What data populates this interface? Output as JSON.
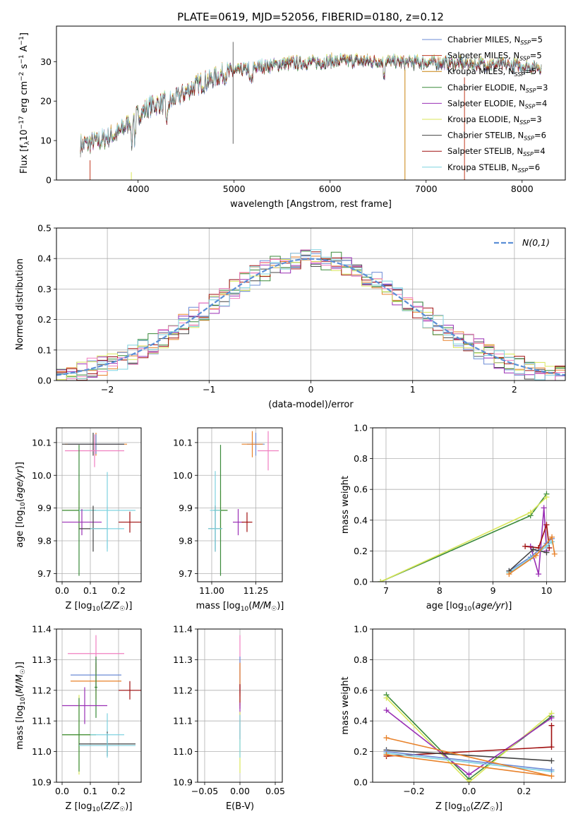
{
  "title": "PLATE=0619, MJD=52056, FIBERID=0180, z=0.12",
  "chart_data": [
    {
      "id": "spectrum",
      "type": "line",
      "xlabel": "wavelength [Angstrom, rest frame]",
      "ylabel": "Flux [f_λ 10^-17 erg cm^-2 s^-1 A^-1]",
      "xlim": [
        3150,
        8450
      ],
      "ylim": [
        0,
        39
      ],
      "xticks": [
        4000,
        5000,
        6000,
        7000,
        8000
      ],
      "yticks": [
        0,
        10,
        20,
        30
      ],
      "legend_position": "top-right",
      "grid": false,
      "continuum_points": [
        [
          3400,
          9
        ],
        [
          3600,
          10
        ],
        [
          3800,
          12
        ],
        [
          3950,
          16
        ],
        [
          4150,
          19
        ],
        [
          4350,
          20
        ],
        [
          4600,
          24
        ],
        [
          4900,
          27
        ],
        [
          5200,
          28.5
        ],
        [
          5500,
          29.5
        ],
        [
          5800,
          29.8
        ],
        [
          6200,
          30.3
        ],
        [
          6600,
          30
        ],
        [
          7000,
          29.8
        ],
        [
          7400,
          29.6
        ],
        [
          7800,
          29.2
        ],
        [
          8200,
          28.6
        ]
      ],
      "series": [
        {
          "name": "Chabrier MILES, N_SSP=5",
          "color": "#6b8bd6"
        },
        {
          "name": "Salpeter MILES, N_SSP=5",
          "color": "#c23b22"
        },
        {
          "name": "Kroupa MILES, N_SSP=5",
          "color": "#c8820f"
        },
        {
          "name": "Chabrier ELODIE, N_SSP=3",
          "color": "#3a8a3a"
        },
        {
          "name": "Salpeter ELODIE, N_SSP=4",
          "color": "#9a2fb5"
        },
        {
          "name": "Kroupa ELODIE, N_SSP=3",
          "color": "#d8e65a"
        },
        {
          "name": "Chabrier STELIB, N_SSP=6",
          "color": "#444444"
        },
        {
          "name": "Salpeter STELIB, N_SSP=4",
          "color": "#a01010"
        },
        {
          "name": "Kroupa STELIB, N_SSP=6",
          "color": "#7fd3e0"
        }
      ]
    },
    {
      "id": "residual_hist",
      "type": "line",
      "xlabel": "(data-model)/error",
      "ylabel": "Normed distribution",
      "xlim": [
        -2.5,
        2.5
      ],
      "ylim": [
        0,
        0.5
      ],
      "xticks": [
        -2,
        -1,
        0,
        1,
        2
      ],
      "yticks": [
        0.0,
        0.1,
        0.2,
        0.3,
        0.4,
        0.5
      ],
      "grid": true,
      "legend_position": "top-right",
      "reference": {
        "name": "N(0,1)",
        "color": "#5b8fd6"
      },
      "bin_width": 0.1,
      "series_colors": [
        "#444444",
        "#e8822a",
        "#6b8bd6",
        "#3a8a3a",
        "#9a2fb5",
        "#d8e65a",
        "#a01010",
        "#f07fc0",
        "#7fd3e0"
      ]
    },
    {
      "id": "age_vs_Z",
      "type": "scatter",
      "xlabel": "Z [log10(Z/Z☉)]",
      "ylabel": "age  [log10(age/yr)]",
      "xlim": [
        -0.02,
        0.28
      ],
      "ylim": [
        9.675,
        10.145
      ],
      "xticks": [
        0.0,
        0.1,
        0.2
      ],
      "yticks": [
        9.7,
        9.8,
        9.9,
        10.0,
        10.1
      ],
      "grid": true,
      "points": [
        {
          "x": 0.12,
          "y": 10.095,
          "xerr": 0.11,
          "yerr": 0.035,
          "color": "#e8822a"
        },
        {
          "x": 0.12,
          "y": 10.095,
          "xerr": 0.1,
          "yerr": 0.03,
          "color": "#6b8bd6"
        },
        {
          "x": 0.11,
          "y": 10.095,
          "xerr": 0.11,
          "yerr": 0.035,
          "color": "#444444"
        },
        {
          "x": 0.115,
          "y": 10.075,
          "xerr": 0.105,
          "yerr": 0.05,
          "color": "#f07fc0"
        },
        {
          "x": 0.06,
          "y": 9.893,
          "xerr": 0.06,
          "yerr": 0.06,
          "color": "#d8e65a"
        },
        {
          "x": 0.06,
          "y": 9.893,
          "xerr": 0.06,
          "yerr": 0.2,
          "color": "#3a8a3a"
        },
        {
          "x": 0.16,
          "y": 9.893,
          "xerr": 0.1,
          "yerr": 0.117,
          "color": "#7fd3e0"
        },
        {
          "x": 0.07,
          "y": 9.857,
          "xerr": 0.07,
          "yerr": 0.04,
          "color": "#9a2fb5"
        },
        {
          "x": 0.24,
          "y": 9.857,
          "xerr": 0.04,
          "yerr": 0.032,
          "color": "#a01010"
        },
        {
          "x": 0.11,
          "y": 9.837,
          "xerr": 0.05,
          "yerr": 0.07,
          "color": "#444444"
        },
        {
          "x": 0.16,
          "y": 9.837,
          "xerr": 0.06,
          "yerr": 0.07,
          "color": "#7fd3e0"
        }
      ]
    },
    {
      "id": "age_vs_mass",
      "type": "scatter",
      "xlabel": "mass [log10(M/M☉)]",
      "ylabel": "",
      "xlim": [
        10.92,
        11.4
      ],
      "ylim": [
        9.675,
        10.145
      ],
      "xticks": [
        11.0,
        11.25
      ],
      "yticks": [
        9.7,
        9.8,
        9.9,
        10.0,
        10.1
      ],
      "grid": true,
      "points": [
        {
          "x": 11.25,
          "y": 10.095,
          "xerr": 0.05,
          "yerr": 0.035,
          "color": "#6b8bd6"
        },
        {
          "x": 11.23,
          "y": 10.095,
          "xerr": 0.06,
          "yerr": 0.04,
          "color": "#e8822a"
        },
        {
          "x": 11.32,
          "y": 10.075,
          "xerr": 0.06,
          "yerr": 0.06,
          "color": "#f07fc0"
        },
        {
          "x": 11.05,
          "y": 9.893,
          "xerr": 0.04,
          "yerr": 0.06,
          "color": "#d8e65a"
        },
        {
          "x": 11.05,
          "y": 9.893,
          "xerr": 0.04,
          "yerr": 0.2,
          "color": "#3a8a3a"
        },
        {
          "x": 11.02,
          "y": 9.893,
          "xerr": 0.03,
          "yerr": 0.12,
          "color": "#7fd3e0"
        },
        {
          "x": 11.15,
          "y": 9.857,
          "xerr": 0.03,
          "yerr": 0.04,
          "color": "#9a2fb5"
        },
        {
          "x": 11.2,
          "y": 9.857,
          "xerr": 0.03,
          "yerr": 0.03,
          "color": "#a01010"
        },
        {
          "x": 11.02,
          "y": 9.837,
          "xerr": 0.04,
          "yerr": 0.07,
          "color": "#444444"
        },
        {
          "x": 11.02,
          "y": 9.837,
          "xerr": 0.04,
          "yerr": 0.07,
          "color": "#7fd3e0"
        }
      ]
    },
    {
      "id": "weight_vs_age",
      "type": "line",
      "xlabel": "age  [log10(age/yr)]",
      "ylabel": "mass weight",
      "xlim": [
        6.75,
        10.35
      ],
      "ylim": [
        0,
        1.0
      ],
      "xticks": [
        7,
        8,
        9,
        10
      ],
      "yticks": [
        0.0,
        0.2,
        0.4,
        0.6,
        0.8,
        1.0
      ],
      "grid": true,
      "series": [
        {
          "color": "#3a8a3a",
          "points": [
            [
              6.9,
              0.0
            ],
            [
              9.7,
              0.43
            ],
            [
              10.0,
              0.57
            ]
          ]
        },
        {
          "color": "#d8e65a",
          "points": [
            [
              6.9,
              0.0
            ],
            [
              9.7,
              0.45
            ],
            [
              10.0,
              0.55
            ]
          ]
        },
        {
          "color": "#9a2fb5",
          "points": [
            [
              9.7,
              0.23
            ],
            [
              9.85,
              0.05
            ],
            [
              9.95,
              0.48
            ],
            [
              10.0,
              0.2
            ]
          ]
        },
        {
          "color": "#a01010",
          "points": [
            [
              9.6,
              0.23
            ],
            [
              9.85,
              0.22
            ],
            [
              10.0,
              0.37
            ],
            [
              10.05,
              0.22
            ]
          ]
        },
        {
          "color": "#6b8bd6",
          "points": [
            [
              9.3,
              0.07
            ],
            [
              9.7,
              0.16
            ],
            [
              10.0,
              0.25
            ],
            [
              10.1,
              0.28
            ]
          ]
        },
        {
          "color": "#7fd3e0",
          "points": [
            [
              9.3,
              0.06
            ],
            [
              9.7,
              0.15
            ],
            [
              10.0,
              0.23
            ],
            [
              10.1,
              0.26
            ]
          ]
        },
        {
          "color": "#444444",
          "points": [
            [
              9.3,
              0.07
            ],
            [
              9.75,
              0.21
            ],
            [
              10.0,
              0.19
            ]
          ]
        },
        {
          "color": "#e8822a",
          "points": [
            [
              9.3,
              0.05
            ],
            [
              9.8,
              0.17
            ],
            [
              10.1,
              0.29
            ],
            [
              10.15,
              0.18
            ]
          ]
        }
      ]
    },
    {
      "id": "mass_vs_Z",
      "type": "scatter",
      "xlabel": "Z [log10(Z/Z☉)]",
      "ylabel": "mass [log10(M/M☉)]",
      "xlim": [
        -0.02,
        0.28
      ],
      "ylim": [
        10.9,
        11.4
      ],
      "xticks": [
        0.0,
        0.1,
        0.2
      ],
      "yticks": [
        10.9,
        11.0,
        11.1,
        11.2,
        11.3,
        11.4
      ],
      "grid": true,
      "points": [
        {
          "x": 0.12,
          "y": 11.32,
          "xerr": 0.1,
          "yerr": 0.06,
          "color": "#f07fc0"
        },
        {
          "x": 0.12,
          "y": 11.25,
          "xerr": 0.09,
          "yerr": 0.05,
          "color": "#6b8bd6"
        },
        {
          "x": 0.12,
          "y": 11.23,
          "xerr": 0.09,
          "yerr": 0.06,
          "color": "#e8822a"
        },
        {
          "x": 0.12,
          "y": 11.21,
          "xerr": 0.005,
          "yerr": 0.1,
          "color": "#3a8a3a"
        },
        {
          "x": 0.24,
          "y": 11.2,
          "xerr": 0.04,
          "yerr": 0.03,
          "color": "#a01010"
        },
        {
          "x": 0.08,
          "y": 11.15,
          "xerr": 0.08,
          "yerr": 0.06,
          "color": "#9a2fb5"
        },
        {
          "x": 0.06,
          "y": 11.055,
          "xerr": 0.06,
          "yerr": 0.13,
          "color": "#d8e65a"
        },
        {
          "x": 0.06,
          "y": 11.055,
          "xerr": 0.06,
          "yerr": 0.12,
          "color": "#3a8a3a"
        },
        {
          "x": 0.16,
          "y": 11.055,
          "xerr": 0.06,
          "yerr": 0.07,
          "color": "#7fd3e0"
        },
        {
          "x": 0.16,
          "y": 11.025,
          "xerr": 0.1,
          "yerr": 0.04,
          "color": "#444444"
        },
        {
          "x": 0.16,
          "y": 11.02,
          "xerr": 0.1,
          "yerr": 0.04,
          "color": "#7fd3e0"
        }
      ]
    },
    {
      "id": "mass_vs_ebv",
      "type": "scatter",
      "xlabel": "E(B-V)",
      "ylabel": "",
      "xlim": [
        -0.06,
        0.06
      ],
      "ylim": [
        10.9,
        11.4
      ],
      "xticks": [
        -0.05,
        0.0,
        0.05
      ],
      "yticks": [
        10.9,
        11.0,
        11.1,
        11.2,
        11.3,
        11.4
      ],
      "grid": true,
      "points": [
        {
          "x": 0.0,
          "y": 11.28,
          "xerr": 0,
          "yerr": 0.1,
          "color": "#f07fc0"
        },
        {
          "x": 0.0,
          "y": 11.25,
          "xerr": 0,
          "yerr": 0.06,
          "color": "#6b8bd6"
        },
        {
          "x": 0.0,
          "y": 11.22,
          "xerr": 0,
          "yerr": 0.07,
          "color": "#e8822a"
        },
        {
          "x": 0.0,
          "y": 11.18,
          "xerr": 0,
          "yerr": 0.04,
          "color": "#a01010"
        },
        {
          "x": 0.0,
          "y": 11.1,
          "xerr": 0,
          "yerr": 0.06,
          "color": "#9a2fb5"
        },
        {
          "x": 0.0,
          "y": 11.03,
          "xerr": 0,
          "yerr": 0.1,
          "color": "#d8e65a"
        },
        {
          "x": 0.0,
          "y": 11.05,
          "xerr": 0,
          "yerr": 0.07,
          "color": "#7fd3e0"
        }
      ]
    },
    {
      "id": "weight_vs_Z",
      "type": "line",
      "xlabel": "Z [log10(Z/Z☉)]",
      "ylabel": "mass weight",
      "xlim": [
        -0.35,
        0.35
      ],
      "ylim": [
        0,
        1.0
      ],
      "xticks": [
        -0.2,
        0.0,
        0.2
      ],
      "yticks": [
        0.0,
        0.2,
        0.4,
        0.6,
        0.8,
        1.0
      ],
      "grid": true,
      "series": [
        {
          "color": "#3a8a3a",
          "points": [
            [
              -0.3,
              0.57
            ],
            [
              0.0,
              0.02
            ],
            [
              0.3,
              0.43
            ]
          ]
        },
        {
          "color": "#d8e65a",
          "points": [
            [
              -0.3,
              0.55
            ],
            [
              0.0,
              0.0
            ],
            [
              0.3,
              0.45
            ]
          ]
        },
        {
          "color": "#9a2fb5",
          "points": [
            [
              -0.3,
              0.47
            ],
            [
              0.0,
              0.05
            ],
            [
              0.3,
              0.42
            ]
          ]
        },
        {
          "color": "#a01010",
          "points": [
            [
              -0.3,
              0.17
            ],
            [
              0.3,
              0.23
            ],
            [
              0.3,
              0.37
            ]
          ]
        },
        {
          "color": "#444444",
          "points": [
            [
              -0.3,
              0.21
            ],
            [
              0.3,
              0.14
            ]
          ]
        },
        {
          "color": "#7fd3e0",
          "points": [
            [
              -0.3,
              0.19
            ],
            [
              0.3,
              0.07
            ]
          ]
        },
        {
          "color": "#6b8bd6",
          "points": [
            [
              -0.3,
              0.2
            ],
            [
              0.3,
              0.08
            ]
          ]
        },
        {
          "color": "#e8822a",
          "points": [
            [
              -0.3,
              0.18
            ],
            [
              0.3,
              0.04
            ],
            [
              -0.3,
              0.29
            ]
          ]
        }
      ]
    }
  ]
}
